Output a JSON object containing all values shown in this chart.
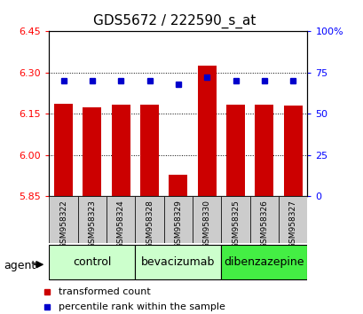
{
  "title": "GDS5672 / 222590_s_at",
  "samples": [
    "GSM958322",
    "GSM958323",
    "GSM958324",
    "GSM958328",
    "GSM958329",
    "GSM958330",
    "GSM958325",
    "GSM958326",
    "GSM958327"
  ],
  "red_values": [
    6.185,
    6.175,
    6.183,
    6.182,
    5.928,
    6.325,
    6.183,
    6.182,
    6.18
  ],
  "blue_values_pct": [
    70,
    70,
    70,
    70,
    68,
    72,
    70,
    70,
    70
  ],
  "ylim_left": [
    5.85,
    6.45
  ],
  "ylim_right": [
    0,
    100
  ],
  "yticks_left": [
    5.85,
    6.0,
    6.15,
    6.3,
    6.45
  ],
  "yticks_right": [
    0,
    25,
    50,
    75,
    100
  ],
  "ytick_labels_right": [
    "0",
    "25",
    "50",
    "75",
    "100%"
  ],
  "groups": [
    {
      "label": "control",
      "indices": [
        0,
        1,
        2
      ],
      "color": "#ccffcc"
    },
    {
      "label": "bevacizumab",
      "indices": [
        3,
        4,
        5
      ],
      "color": "#ccffcc"
    },
    {
      "label": "dibenzazepine",
      "indices": [
        6,
        7,
        8
      ],
      "color": "#44ee44"
    }
  ],
  "bar_color": "#cc0000",
  "marker_color": "#0000cc",
  "bar_bottom": 5.85,
  "bar_width": 0.65,
  "grid_color": "#000000",
  "sample_box_color": "#cccccc",
  "legend_red_label": "transformed count",
  "legend_blue_label": "percentile rank within the sample",
  "agent_label": "agent",
  "title_fontsize": 11,
  "tick_fontsize": 8,
  "sample_fontsize": 6.5,
  "group_fontsize": 9,
  "legend_fontsize": 8
}
